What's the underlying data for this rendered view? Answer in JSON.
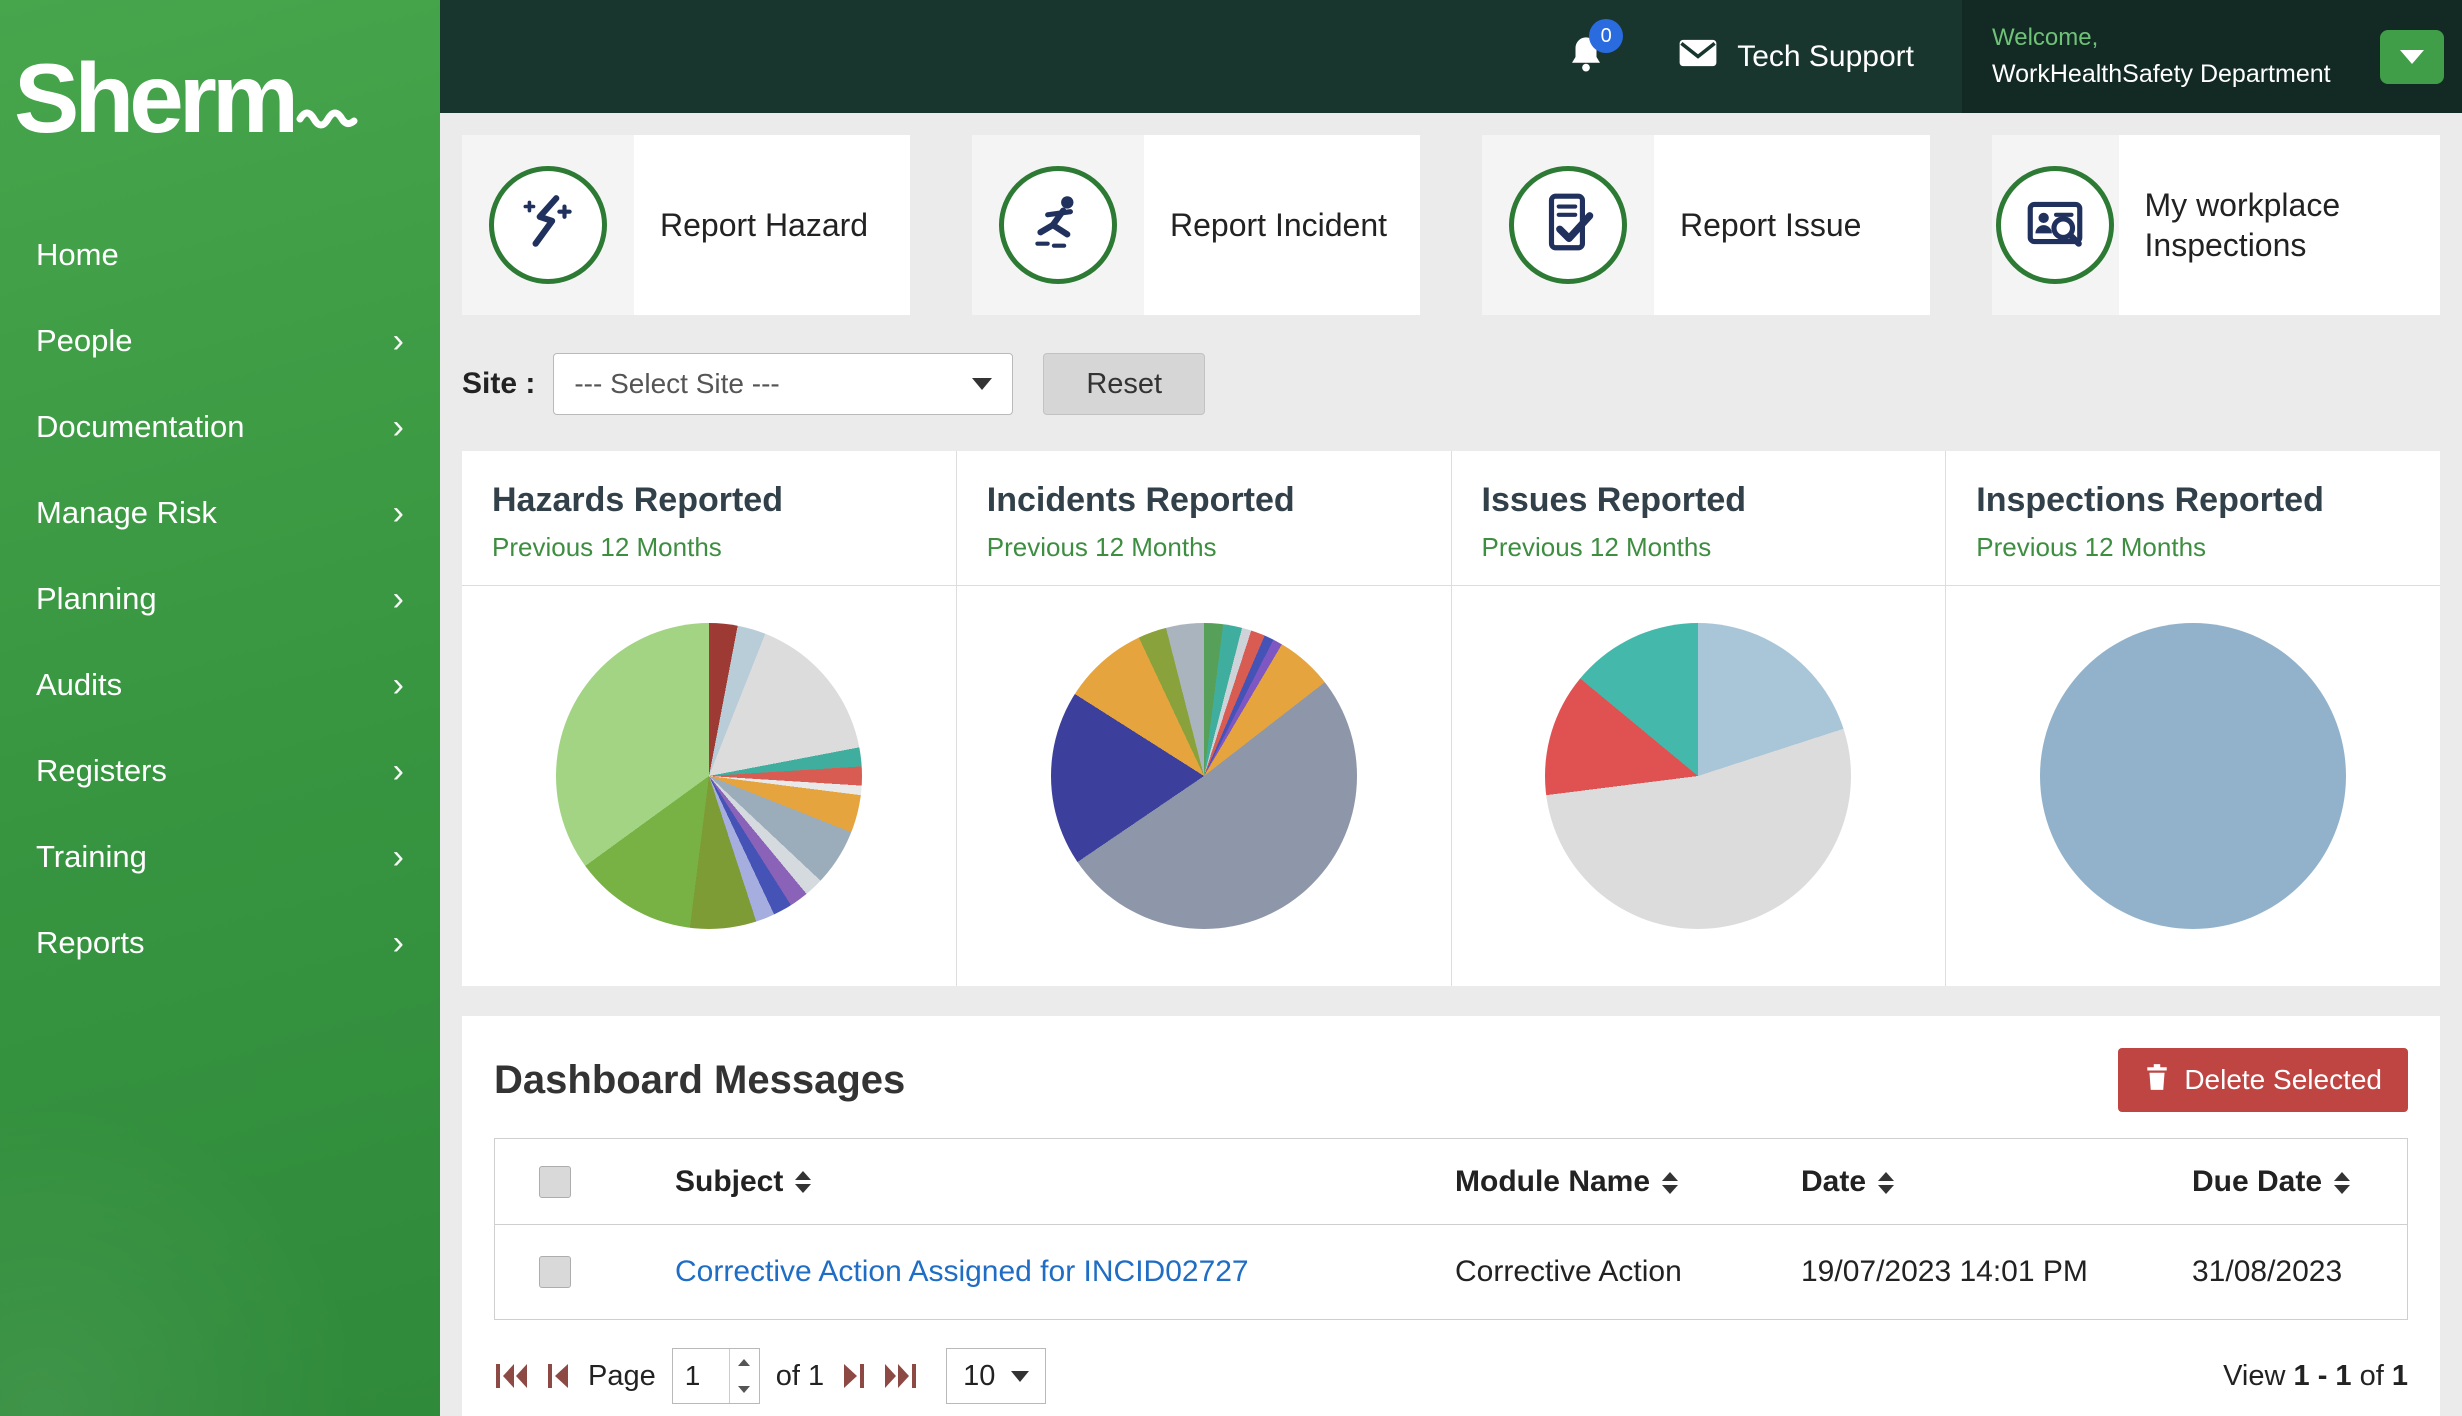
{
  "sidebar": {
    "logo": "Sherm",
    "chevron_glyph": "›",
    "items": [
      {
        "label": "Home",
        "chevron": false
      },
      {
        "label": "People",
        "chevron": true
      },
      {
        "label": "Documentation",
        "chevron": true
      },
      {
        "label": "Manage Risk",
        "chevron": true
      },
      {
        "label": "Planning",
        "chevron": true
      },
      {
        "label": "Audits",
        "chevron": true
      },
      {
        "label": "Registers",
        "chevron": true
      },
      {
        "label": "Training",
        "chevron": true
      },
      {
        "label": "Reports",
        "chevron": true
      }
    ]
  },
  "topbar": {
    "notification_count": "0",
    "tech_support_label": "Tech Support",
    "welcome_label": "Welcome,",
    "account_name": "WorkHealthSafety Department"
  },
  "quick_actions": [
    {
      "label": "Report Hazard",
      "icon": "hazard-icon"
    },
    {
      "label": "Report Incident",
      "icon": "incident-icon"
    },
    {
      "label": "Report Issue",
      "icon": "issue-icon"
    },
    {
      "label": "My workplace Inspections",
      "icon": "inspection-icon"
    }
  ],
  "site_filter": {
    "label": "Site :",
    "selected_option": "--- Select Site ---",
    "reset_label": "Reset"
  },
  "chart_data": [
    {
      "type": "pie",
      "title": "Hazards Reported",
      "subtitle": "Previous 12 Months",
      "slices": [
        {
          "value": 3,
          "color": "#9e3a34"
        },
        {
          "value": 3,
          "color": "#b9cdd9"
        },
        {
          "value": 16,
          "color": "#dcdcdc"
        },
        {
          "value": 2,
          "color": "#3fae9e"
        },
        {
          "value": 2,
          "color": "#d95c52"
        },
        {
          "value": 1,
          "color": "#e9e9e9"
        },
        {
          "value": 4,
          "color": "#e5a43d"
        },
        {
          "value": 6,
          "color": "#9badbb"
        },
        {
          "value": 2,
          "color": "#d5dade"
        },
        {
          "value": 2,
          "color": "#8a63b8"
        },
        {
          "value": 2,
          "color": "#4453b5"
        },
        {
          "value": 2,
          "color": "#a5aede"
        },
        {
          "value": 7,
          "color": "#7e9c35"
        },
        {
          "value": 13,
          "color": "#79b244"
        },
        {
          "value": 35,
          "color": "#a2d483"
        }
      ]
    },
    {
      "type": "pie",
      "title": "Incidents Reported",
      "subtitle": "Previous 12 Months",
      "slices": [
        {
          "value": 2,
          "color": "#57a05a"
        },
        {
          "value": 2,
          "color": "#3fae9e"
        },
        {
          "value": 1,
          "color": "#cdd3d8"
        },
        {
          "value": 1.5,
          "color": "#d95c52"
        },
        {
          "value": 1,
          "color": "#4453b5"
        },
        {
          "value": 1,
          "color": "#7e57c2"
        },
        {
          "value": 6,
          "color": "#e5a43d"
        },
        {
          "value": 51,
          "color": "#8d97a9"
        },
        {
          "value": 18.5,
          "color": "#3c3f9c"
        },
        {
          "value": 9,
          "color": "#e5a43d"
        },
        {
          "value": 3,
          "color": "#8aa23c"
        },
        {
          "value": 4,
          "color": "#aab4be"
        }
      ]
    },
    {
      "type": "pie",
      "title": "Issues Reported",
      "subtitle": "Previous 12 Months",
      "slices": [
        {
          "value": 20,
          "color": "#a9c6d8"
        },
        {
          "value": 53,
          "color": "#dcdcdc"
        },
        {
          "value": 13,
          "color": "#e05252"
        },
        {
          "value": 14,
          "color": "#45b8ac"
        }
      ]
    },
    {
      "type": "pie",
      "title": "Inspections Reported",
      "subtitle": "Previous 12 Months",
      "slices": [
        {
          "value": 100,
          "color": "#91b2ca"
        }
      ]
    }
  ],
  "messages": {
    "title": "Dashboard Messages",
    "delete_button_label": "Delete Selected",
    "columns": [
      {
        "label": "Subject",
        "sortable": true
      },
      {
        "label": "Module Name",
        "sortable": true
      },
      {
        "label": "Date",
        "sortable": true
      },
      {
        "label": "Due Date",
        "sortable": true
      }
    ],
    "rows": [
      {
        "subject": "Corrective Action Assigned for INCID02727",
        "module": "Corrective Action",
        "date": "19/07/2023 14:01 PM",
        "due_date": "31/08/2023"
      }
    ],
    "pagination": {
      "page_label": "Page",
      "page_value": "1",
      "of_label": "of",
      "total_pages": "1",
      "page_size": "10",
      "view_label": "View",
      "view_range": "1 - 1",
      "view_of": "of",
      "view_total": "1"
    }
  },
  "colors": {
    "sidebar_green": "#3f9e47",
    "topbar_dark": "#18362e",
    "accent_green": "#3e8e41",
    "delete_red": "#bf4543",
    "link_blue": "#1f6dc4"
  }
}
